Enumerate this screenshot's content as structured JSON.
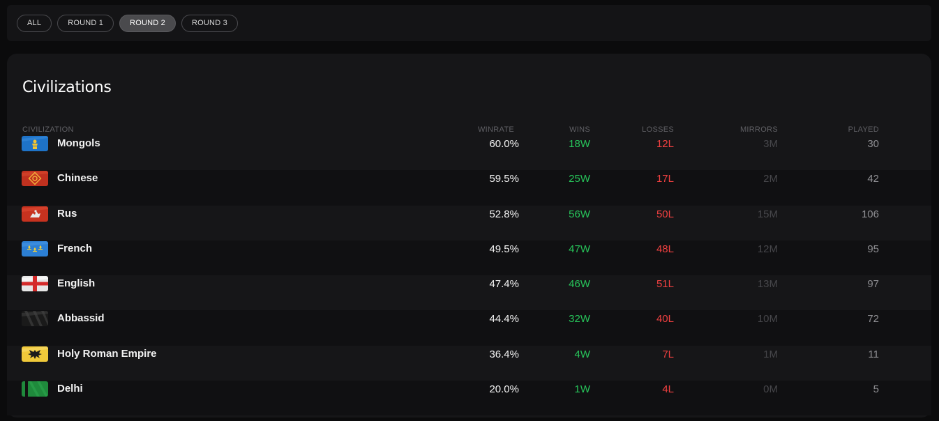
{
  "filters": [
    {
      "label": "ALL",
      "active": false
    },
    {
      "label": "ROUND 1",
      "active": false
    },
    {
      "label": "ROUND 2",
      "active": true
    },
    {
      "label": "ROUND 3",
      "active": false
    }
  ],
  "panel": {
    "title": "Civilizations"
  },
  "columns": {
    "civilization": "CIVILIZATION",
    "winrate": "WINRATE",
    "wins": "WINS",
    "losses": "LOSSES",
    "mirrors": "MIRRORS",
    "played": "PLAYED"
  },
  "rows": [
    {
      "name": "Mongols",
      "flag": "mongols-flag-icon",
      "winrate": "60.0%",
      "wins": "18W",
      "losses": "12L",
      "mirrors": "3M",
      "played": "30"
    },
    {
      "name": "Chinese",
      "flag": "chinese-flag-icon",
      "winrate": "59.5%",
      "wins": "25W",
      "losses": "17L",
      "mirrors": "2M",
      "played": "42"
    },
    {
      "name": "Rus",
      "flag": "rus-flag-icon",
      "winrate": "52.8%",
      "wins": "56W",
      "losses": "50L",
      "mirrors": "15M",
      "played": "106"
    },
    {
      "name": "French",
      "flag": "french-flag-icon",
      "winrate": "49.5%",
      "wins": "47W",
      "losses": "48L",
      "mirrors": "12M",
      "played": "95"
    },
    {
      "name": "English",
      "flag": "english-flag-icon",
      "winrate": "47.4%",
      "wins": "46W",
      "losses": "51L",
      "mirrors": "13M",
      "played": "97"
    },
    {
      "name": "Abbassid",
      "flag": "abbassid-flag-icon",
      "winrate": "44.4%",
      "wins": "32W",
      "losses": "40L",
      "mirrors": "10M",
      "played": "72"
    },
    {
      "name": "Holy Roman Empire",
      "flag": "holy-roman-empire-flag-icon",
      "winrate": "36.4%",
      "wins": "4W",
      "losses": "7L",
      "mirrors": "1M",
      "played": "11"
    },
    {
      "name": "Delhi",
      "flag": "delhi-flag-icon",
      "winrate": "20.0%",
      "wins": "1W",
      "losses": "4L",
      "mirrors": "0M",
      "played": "5"
    }
  ],
  "colors": {
    "wins": "#27c45a",
    "losses": "#f04040",
    "panel": "#161618",
    "active_pill": "#4a4a4d"
  }
}
